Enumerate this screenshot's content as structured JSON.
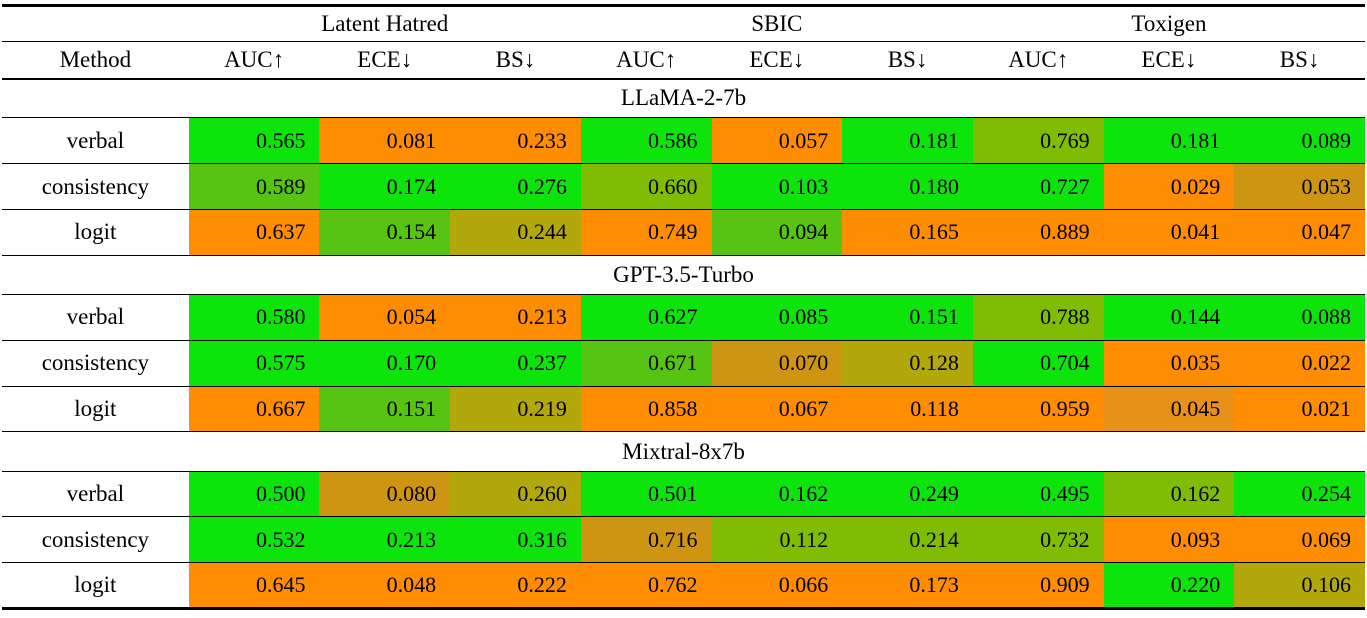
{
  "table": {
    "datasets": [
      "Latent Hatred",
      "SBIC",
      "Toxigen"
    ],
    "method_header": "Method",
    "metric_headers": [
      "AUC↑",
      "ECE↓",
      "BS↓",
      "AUC↑",
      "ECE↓",
      "BS↓",
      "AUC↑",
      "ECE↓",
      "BS↓"
    ],
    "palette": {
      "green": "#0CE40C",
      "lightGreen": "#57C414",
      "yellowGreen": "#7FBC03",
      "olive": "#B2A70B",
      "goldenrod": "#CE9512",
      "mutedOrange": "#E89118",
      "orange": "#FE8D02"
    },
    "sections": [
      {
        "model": "LLaMA-2-7b",
        "rows": [
          {
            "method": "verbal",
            "cells": [
              {
                "v": "0.565",
                "c": "green"
              },
              {
                "v": "0.081",
                "c": "orange"
              },
              {
                "v": "0.233",
                "c": "orange"
              },
              {
                "v": "0.586",
                "c": "green"
              },
              {
                "v": "0.057",
                "c": "orange"
              },
              {
                "v": "0.181",
                "c": "green"
              },
              {
                "v": "0.769",
                "c": "yellowGreen"
              },
              {
                "v": "0.181",
                "c": "green"
              },
              {
                "v": "0.089",
                "c": "green"
              }
            ]
          },
          {
            "method": "consistency",
            "cells": [
              {
                "v": "0.589",
                "c": "lightGreen"
              },
              {
                "v": "0.174",
                "c": "green"
              },
              {
                "v": "0.276",
                "c": "green"
              },
              {
                "v": "0.660",
                "c": "yellowGreen"
              },
              {
                "v": "0.103",
                "c": "green"
              },
              {
                "v": "0.180",
                "c": "green"
              },
              {
                "v": "0.727",
                "c": "green"
              },
              {
                "v": "0.029",
                "c": "orange"
              },
              {
                "v": "0.053",
                "c": "goldenrod"
              }
            ]
          },
          {
            "method": "logit",
            "cells": [
              {
                "v": "0.637",
                "c": "orange"
              },
              {
                "v": "0.154",
                "c": "lightGreen"
              },
              {
                "v": "0.244",
                "c": "olive"
              },
              {
                "v": "0.749",
                "c": "orange"
              },
              {
                "v": "0.094",
                "c": "lightGreen"
              },
              {
                "v": "0.165",
                "c": "orange"
              },
              {
                "v": "0.889",
                "c": "orange"
              },
              {
                "v": "0.041",
                "c": "orange"
              },
              {
                "v": "0.047",
                "c": "orange"
              }
            ]
          }
        ]
      },
      {
        "model": "GPT-3.5-Turbo",
        "rows": [
          {
            "method": "verbal",
            "cells": [
              {
                "v": "0.580",
                "c": "green"
              },
              {
                "v": "0.054",
                "c": "orange"
              },
              {
                "v": "0.213",
                "c": "orange"
              },
              {
                "v": "0.627",
                "c": "green"
              },
              {
                "v": "0.085",
                "c": "green"
              },
              {
                "v": "0.151",
                "c": "green"
              },
              {
                "v": "0.788",
                "c": "yellowGreen"
              },
              {
                "v": "0.144",
                "c": "green"
              },
              {
                "v": "0.088",
                "c": "green"
              }
            ]
          },
          {
            "method": "consistency",
            "cells": [
              {
                "v": "0.575",
                "c": "green"
              },
              {
                "v": "0.170",
                "c": "green"
              },
              {
                "v": "0.237",
                "c": "green"
              },
              {
                "v": "0.671",
                "c": "lightGreen"
              },
              {
                "v": "0.070",
                "c": "goldenrod"
              },
              {
                "v": "0.128",
                "c": "olive"
              },
              {
                "v": "0.704",
                "c": "green"
              },
              {
                "v": "0.035",
                "c": "orange"
              },
              {
                "v": "0.022",
                "c": "orange"
              }
            ]
          },
          {
            "method": "logit",
            "cells": [
              {
                "v": "0.667",
                "c": "orange"
              },
              {
                "v": "0.151",
                "c": "lightGreen"
              },
              {
                "v": "0.219",
                "c": "olive"
              },
              {
                "v": "0.858",
                "c": "orange"
              },
              {
                "v": "0.067",
                "c": "orange"
              },
              {
                "v": "0.118",
                "c": "orange"
              },
              {
                "v": "0.959",
                "c": "orange"
              },
              {
                "v": "0.045",
                "c": "mutedOrange"
              },
              {
                "v": "0.021",
                "c": "orange"
              }
            ]
          }
        ]
      },
      {
        "model": "Mixtral-8x7b",
        "rows": [
          {
            "method": "verbal",
            "cells": [
              {
                "v": "0.500",
                "c": "green"
              },
              {
                "v": "0.080",
                "c": "goldenrod"
              },
              {
                "v": "0.260",
                "c": "olive"
              },
              {
                "v": "0.501",
                "c": "green"
              },
              {
                "v": "0.162",
                "c": "green"
              },
              {
                "v": "0.249",
                "c": "green"
              },
              {
                "v": "0.495",
                "c": "green"
              },
              {
                "v": "0.162",
                "c": "yellowGreen"
              },
              {
                "v": "0.254",
                "c": "green"
              }
            ]
          },
          {
            "method": "consistency",
            "cells": [
              {
                "v": "0.532",
                "c": "green"
              },
              {
                "v": "0.213",
                "c": "green"
              },
              {
                "v": "0.316",
                "c": "green"
              },
              {
                "v": "0.716",
                "c": "goldenrod"
              },
              {
                "v": "0.112",
                "c": "yellowGreen"
              },
              {
                "v": "0.214",
                "c": "yellowGreen"
              },
              {
                "v": "0.732",
                "c": "yellowGreen"
              },
              {
                "v": "0.093",
                "c": "orange"
              },
              {
                "v": "0.069",
                "c": "orange"
              }
            ]
          },
          {
            "method": "logit",
            "cells": [
              {
                "v": "0.645",
                "c": "orange"
              },
              {
                "v": "0.048",
                "c": "orange"
              },
              {
                "v": "0.222",
                "c": "orange"
              },
              {
                "v": "0.762",
                "c": "orange"
              },
              {
                "v": "0.066",
                "c": "orange"
              },
              {
                "v": "0.173",
                "c": "orange"
              },
              {
                "v": "0.909",
                "c": "orange"
              },
              {
                "v": "0.220",
                "c": "green"
              },
              {
                "v": "0.106",
                "c": "olive"
              }
            ]
          }
        ]
      }
    ]
  }
}
